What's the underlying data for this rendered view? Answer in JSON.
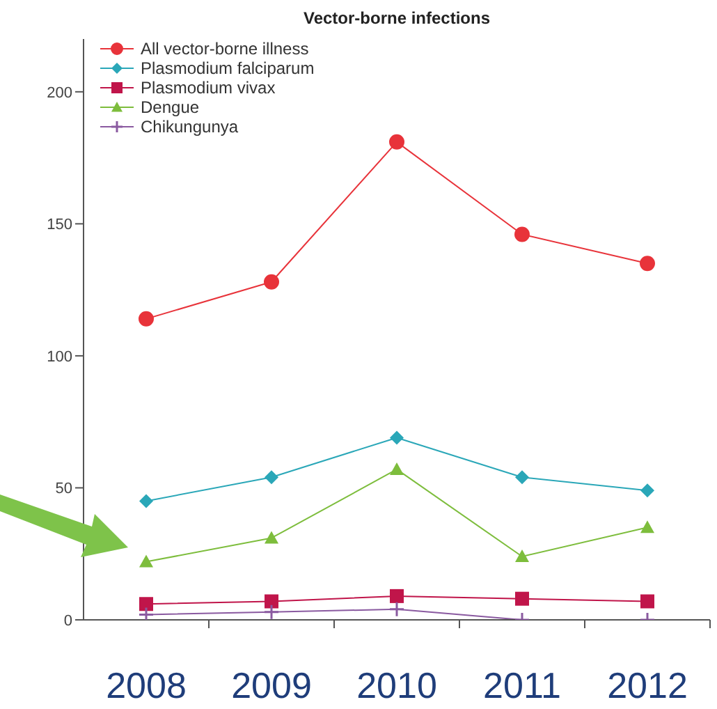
{
  "chart_data": {
    "type": "line",
    "title": "Vector-borne infections",
    "categories": [
      "2008",
      "2009",
      "2010",
      "2011",
      "2012"
    ],
    "ylim": [
      0,
      220
    ],
    "yticks": [
      0,
      50,
      100,
      150,
      200
    ],
    "grid": false,
    "legend": "top left",
    "series": [
      {
        "name": "All vector-borne illness",
        "color": "#e8333a",
        "marker": "circle",
        "values": [
          114,
          128,
          181,
          146,
          135
        ]
      },
      {
        "name": "Plasmodium falciparum",
        "color": "#2aa7b8",
        "marker": "diamond",
        "values": [
          45,
          54,
          69,
          54,
          49
        ]
      },
      {
        "name": "Plasmodium vivax",
        "color": "#c0154a",
        "marker": "square",
        "values": [
          6,
          7,
          9,
          8,
          7
        ]
      },
      {
        "name": "Dengue",
        "color": "#7dbd3c",
        "marker": "triangle",
        "values": [
          22,
          31,
          57,
          24,
          35
        ]
      },
      {
        "name": "Chikungunya",
        "color": "#8a5aa0",
        "marker": "cross",
        "values": [
          2,
          3,
          4,
          0,
          0
        ]
      }
    ]
  }
}
